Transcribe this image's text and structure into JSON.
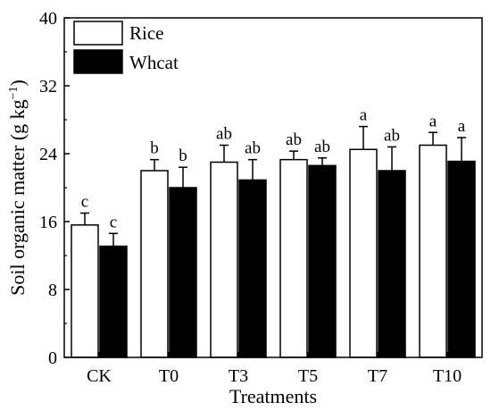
{
  "chart_data": {
    "type": "bar",
    "title": "",
    "xlabel": "Treatments",
    "ylabel": "Soil organic matter (g kg",
    "ylabel_sup": "−1",
    "ylabel_close": ")",
    "ylim": [
      0,
      40
    ],
    "yticks": [
      0,
      8,
      16,
      24,
      32,
      40
    ],
    "ytick_labels": [
      "0",
      "8",
      "16",
      "24",
      "32",
      "40"
    ],
    "categories": [
      "CK",
      "T0",
      "T3",
      "T5",
      "T7",
      "T10"
    ],
    "legend_position": "top-left",
    "grid": false,
    "series": [
      {
        "name": "Rice",
        "color": "#ffffff",
        "values": [
          15.6,
          22.0,
          23.0,
          23.3,
          24.5,
          25.0
        ],
        "errors": [
          1.4,
          1.3,
          2.0,
          1.0,
          2.7,
          1.5
        ],
        "labels": [
          "c",
          "b",
          "ab",
          "ab",
          "a",
          "a"
        ]
      },
      {
        "name": "Whcat",
        "color": "#000000",
        "values": [
          13.1,
          20.0,
          20.9,
          22.6,
          22.0,
          23.1
        ],
        "errors": [
          1.5,
          2.4,
          2.4,
          0.9,
          2.8,
          2.8
        ],
        "labels": [
          "c",
          "b",
          "ab",
          "ab",
          "ab",
          "a"
        ]
      }
    ]
  }
}
